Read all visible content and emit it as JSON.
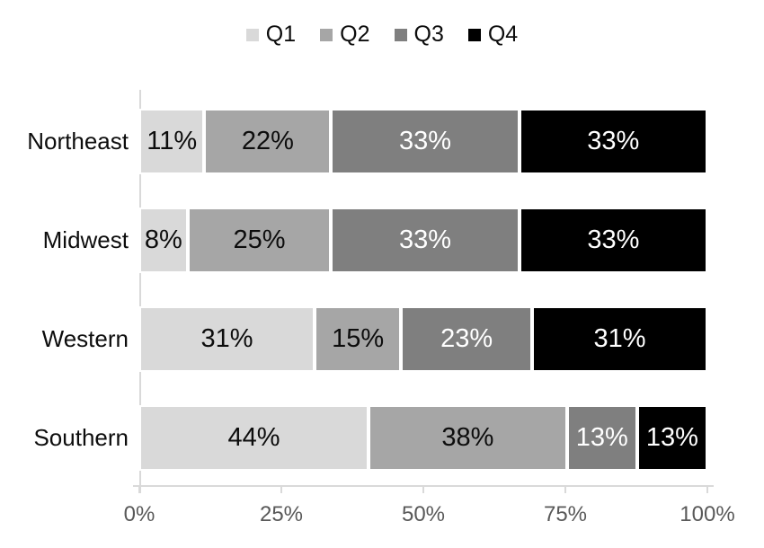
{
  "chart_data": {
    "type": "bar",
    "orientation": "horizontal",
    "stacked": true,
    "percent_stacked": true,
    "title": "",
    "categories": [
      "Northeast",
      "Midwest",
      "Western",
      "Southern"
    ],
    "series": [
      {
        "name": "Q1",
        "color": "#d9d9d9",
        "label_color": "#0d0d0d",
        "values": [
          11,
          8,
          31,
          44
        ]
      },
      {
        "name": "Q2",
        "color": "#a6a6a6",
        "label_color": "#0d0d0d",
        "values": [
          22,
          25,
          15,
          38
        ]
      },
      {
        "name": "Q3",
        "color": "#7f7f7f",
        "label_color": "#ffffff",
        "values": [
          33,
          33,
          23,
          13
        ]
      },
      {
        "name": "Q4",
        "color": "#000000",
        "label_color": "#ffffff",
        "values": [
          33,
          33,
          31,
          13
        ]
      }
    ],
    "data_label_suffix": "%",
    "x_axis": {
      "range": [
        0,
        100
      ],
      "tick_labels": [
        "0%",
        "25%",
        "50%",
        "75%",
        "100%"
      ]
    },
    "legend": {
      "position": "top",
      "entries": [
        "Q1",
        "Q2",
        "Q3",
        "Q4"
      ]
    },
    "grid": false,
    "styles": {
      "background_color": "#ffffff",
      "axis_line_color": "#d9d9d9",
      "axis_text_color": "#595959",
      "category_text_color": "#0d0d0d",
      "segment_border_color": "#ffffff"
    }
  }
}
